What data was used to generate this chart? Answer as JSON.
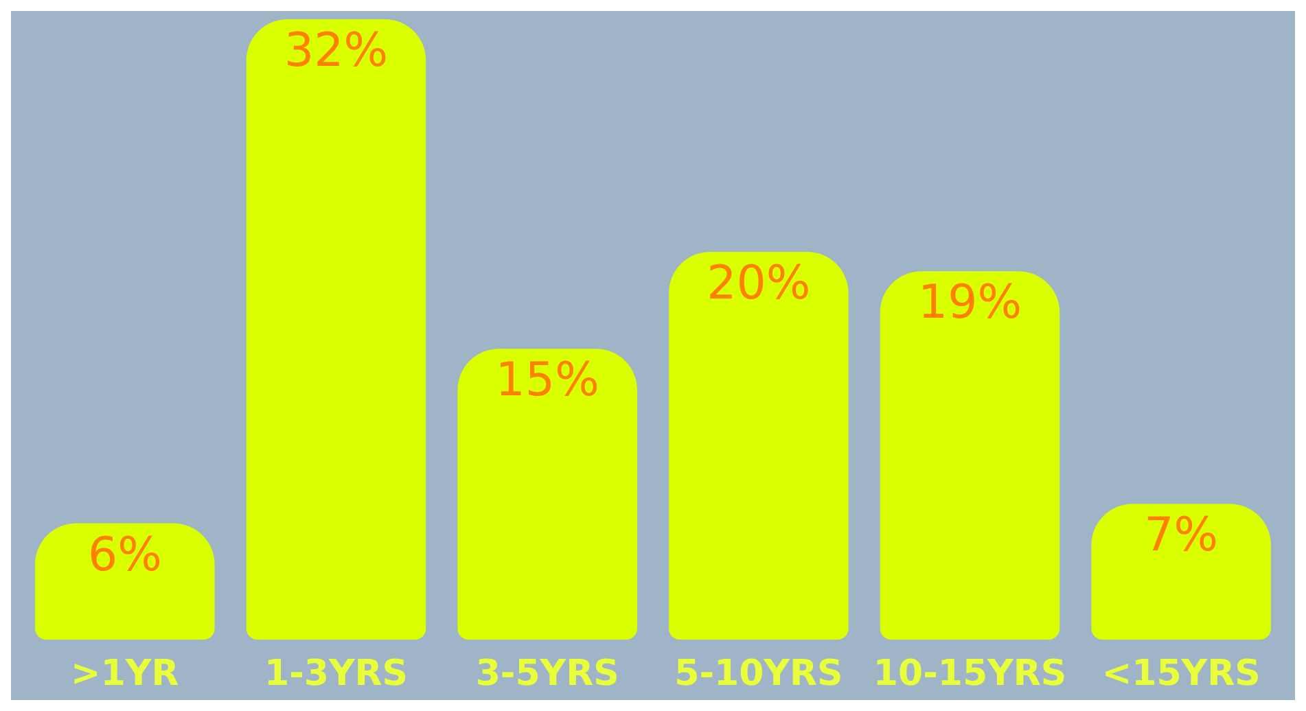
{
  "chart_data": {
    "type": "bar",
    "categories": [
      ">1YR",
      "1-3YRS",
      "3-5YRS",
      "5-10YRS",
      "10-15YRS",
      "<15YRS"
    ],
    "values": [
      6,
      32,
      15,
      20,
      19,
      7
    ],
    "value_labels": [
      "6%",
      "32%",
      "15%",
      "20%",
      "19%",
      "7%"
    ],
    "color": "#d9ff00"
  }
}
